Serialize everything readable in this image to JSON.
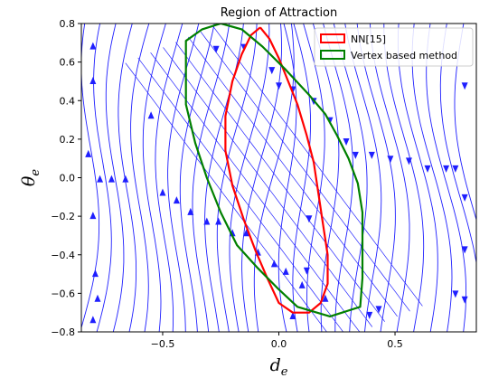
{
  "chart_data": {
    "type": "line",
    "title": "Region of Attraction",
    "xlabel": "d_e",
    "ylabel": "θ_e",
    "xlim": [
      -0.85,
      0.85
    ],
    "ylim": [
      -0.8,
      0.8
    ],
    "xticks": [
      -0.5,
      0.0,
      0.5
    ],
    "yticks": [
      -0.8,
      -0.6,
      -0.4,
      -0.2,
      0.0,
      0.2,
      0.4,
      0.6,
      0.8
    ],
    "grid": false,
    "legend_position": "top-right",
    "background": "streamplot of the closed-loop vector field (blue arrows)",
    "streamline_color": "#1f1fff",
    "series": [
      {
        "name": "NN[15]",
        "color": "#ff0000",
        "points": [
          [
            -0.08,
            0.78
          ],
          [
            -0.04,
            0.72
          ],
          [
            0.0,
            0.62
          ],
          [
            0.04,
            0.5
          ],
          [
            0.08,
            0.38
          ],
          [
            0.12,
            0.22
          ],
          [
            0.15,
            0.08
          ],
          [
            0.17,
            -0.08
          ],
          [
            0.19,
            -0.24
          ],
          [
            0.21,
            -0.4
          ],
          [
            0.21,
            -0.55
          ],
          [
            0.18,
            -0.65
          ],
          [
            0.13,
            -0.7
          ],
          [
            0.06,
            -0.7
          ],
          [
            0.0,
            -0.65
          ],
          [
            -0.05,
            -0.52
          ],
          [
            -0.1,
            -0.38
          ],
          [
            -0.15,
            -0.22
          ],
          [
            -0.2,
            -0.04
          ],
          [
            -0.23,
            0.14
          ],
          [
            -0.23,
            0.32
          ],
          [
            -0.2,
            0.5
          ],
          [
            -0.16,
            0.64
          ],
          [
            -0.12,
            0.74
          ],
          [
            -0.08,
            0.78
          ]
        ]
      },
      {
        "name": "Vertex based method",
        "color": "#008000",
        "points": [
          [
            -0.25,
            0.8
          ],
          [
            -0.16,
            0.77
          ],
          [
            -0.07,
            0.68
          ],
          [
            0.03,
            0.56
          ],
          [
            0.13,
            0.43
          ],
          [
            0.2,
            0.33
          ],
          [
            0.25,
            0.22
          ],
          [
            0.3,
            0.1
          ],
          [
            0.34,
            -0.03
          ],
          [
            0.36,
            -0.18
          ],
          [
            0.36,
            -0.35
          ],
          [
            0.36,
            -0.52
          ],
          [
            0.35,
            -0.67
          ],
          [
            0.22,
            -0.72
          ],
          [
            0.08,
            -0.67
          ],
          [
            0.0,
            -0.58
          ],
          [
            -0.09,
            -0.47
          ],
          [
            -0.18,
            -0.35
          ],
          [
            -0.25,
            -0.18
          ],
          [
            -0.31,
            0.0
          ],
          [
            -0.36,
            0.18
          ],
          [
            -0.4,
            0.38
          ],
          [
            -0.4,
            0.58
          ],
          [
            -0.4,
            0.71
          ],
          [
            -0.33,
            0.77
          ],
          [
            -0.25,
            0.8
          ]
        ]
      }
    ]
  }
}
